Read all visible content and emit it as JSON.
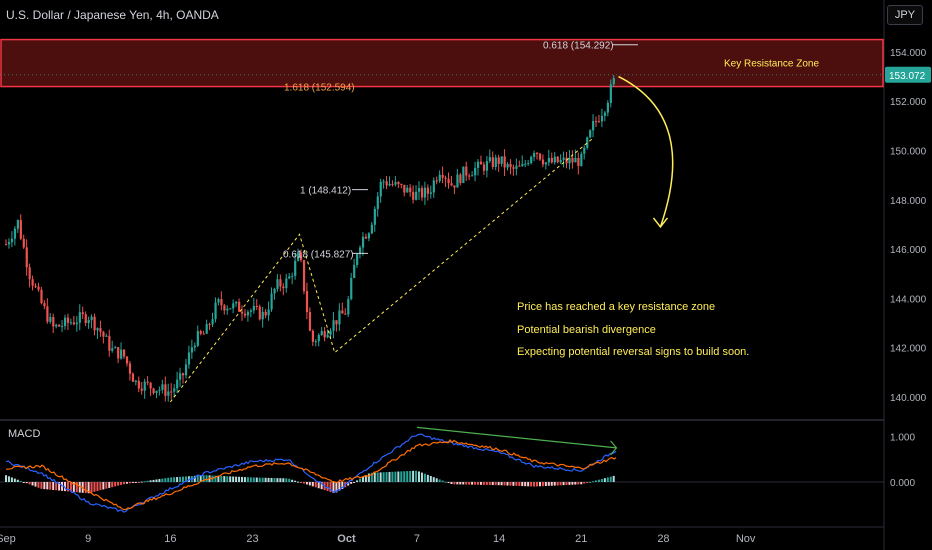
{
  "header": {
    "title": "U.S. Dollar / Japanese Yen, 4h, OANDA",
    "currency_button": "JPY"
  },
  "indicator": {
    "name": "MACD"
  },
  "notes": [
    "Price has reached a key resistance zone",
    "Potential bearish divergence",
    "Expecting potential reversal signs to build soon."
  ],
  "colors": {
    "background": "#000000",
    "up_candle": "#26a69a",
    "down_candle": "#ef5350",
    "zone_fill": "#5a1111",
    "zone_border": "#f23645",
    "annotation_yellow": "#ffee58",
    "macd_line": "#2962ff",
    "signal_line": "#ff6d00",
    "divergence_line": "#4caf50",
    "fib_label_orange": "#f7a24a"
  },
  "chart_data": {
    "type": "candlestick",
    "y_axis": {
      "ticks": [
        140,
        142,
        144,
        146,
        148,
        150,
        152,
        154
      ],
      "tick_labels": [
        "140.000",
        "142.000",
        "144.000",
        "146.000",
        "148.000",
        "150.000",
        "152.000",
        "154.000"
      ]
    },
    "x_axis": {
      "tick_labels": [
        "Sep",
        "9",
        "16",
        "23",
        "Oct",
        "7",
        "14",
        "21",
        "28",
        "Nov"
      ],
      "tick_dates": [
        "2024-09-02",
        "2024-09-09",
        "2024-09-16",
        "2024-09-23",
        "2024-10-01",
        "2024-10-07",
        "2024-10-14",
        "2024-10-21",
        "2024-10-28",
        "2024-11-04"
      ]
    },
    "last_price": "153.072",
    "price_path": [
      [
        "2024-09-02",
        146.2
      ],
      [
        "2024-09-03",
        147.1
      ],
      [
        "2024-09-04",
        145.0
      ],
      [
        "2024-09-05",
        143.8
      ],
      [
        "2024-09-06",
        142.8
      ],
      [
        "2024-09-09",
        143.3
      ],
      [
        "2024-09-10",
        142.7
      ],
      [
        "2024-09-11",
        141.9
      ],
      [
        "2024-09-12",
        141.7
      ],
      [
        "2024-09-13",
        140.6
      ],
      [
        "2024-09-16",
        140.2
      ],
      [
        "2024-09-17",
        140.8
      ],
      [
        "2024-09-18",
        142.3
      ],
      [
        "2024-09-19",
        142.6
      ],
      [
        "2024-09-20",
        143.8
      ],
      [
        "2024-09-23",
        143.5
      ],
      [
        "2024-09-24",
        143.3
      ],
      [
        "2024-09-25",
        144.5
      ],
      [
        "2024-09-26",
        144.7
      ],
      [
        "2024-09-27",
        145.8
      ],
      [
        "2024-09-28",
        142.2
      ],
      [
        "2024-10-01",
        143.5
      ],
      [
        "2024-10-02",
        146.2
      ],
      [
        "2024-10-03",
        146.9
      ],
      [
        "2024-10-04",
        148.8
      ],
      [
        "2024-10-07",
        148.2
      ],
      [
        "2024-10-08",
        148.3
      ],
      [
        "2024-10-09",
        149.3
      ],
      [
        "2024-10-10",
        148.6
      ],
      [
        "2024-10-11",
        149.1
      ],
      [
        "2024-10-14",
        149.6
      ],
      [
        "2024-10-15",
        149.2
      ],
      [
        "2024-10-16",
        149.3
      ],
      [
        "2024-10-17",
        150.1
      ],
      [
        "2024-10-18",
        149.5
      ],
      [
        "2024-10-21",
        149.6
      ],
      [
        "2024-10-22",
        151.0
      ],
      [
        "2024-10-23",
        151.8
      ],
      [
        "2024-10-24",
        153.1
      ]
    ],
    "resistance_zone": {
      "low": 152.594,
      "high": 154.5,
      "label": "Key Resistance Zone"
    },
    "fib_levels": [
      {
        "label": "0.618 (154.292)",
        "value": 154.292,
        "color": "#d1d4dc"
      },
      {
        "label": "1.618 (152.594)",
        "value": 152.594,
        "color": "#f7a24a"
      },
      {
        "label": "1 (148.412)",
        "value": 148.412,
        "color": "#d1d4dc"
      },
      {
        "label": "0.618 (145.827)",
        "value": 145.827,
        "color": "#d1d4dc"
      }
    ],
    "dashed_wave": [
      [
        "2024-09-16",
        139.8
      ],
      [
        "2024-09-27",
        146.6
      ],
      [
        "2024-09-30",
        141.8
      ],
      [
        "2024-10-22",
        150.5
      ]
    ],
    "reversal_arrow": {
      "from": [
        "2024-10-24",
        153.0
      ],
      "to": [
        "2024-10-28",
        146.9
      ]
    },
    "macd": {
      "y_ticks": [
        0,
        1
      ],
      "tick_labels": [
        "0.000",
        "1.000"
      ],
      "macd_path": [
        [
          "2024-09-02",
          0.45
        ],
        [
          "2024-09-05",
          0.2
        ],
        [
          "2024-09-09",
          -0.45
        ],
        [
          "2024-09-12",
          -0.65
        ],
        [
          "2024-09-16",
          -0.15
        ],
        [
          "2024-09-19",
          0.2
        ],
        [
          "2024-09-23",
          0.45
        ],
        [
          "2024-09-26",
          0.5
        ],
        [
          "2024-09-30",
          -0.25
        ],
        [
          "2024-10-03",
          0.35
        ],
        [
          "2024-10-07",
          1.05
        ],
        [
          "2024-10-10",
          0.85
        ],
        [
          "2024-10-14",
          0.65
        ],
        [
          "2024-10-17",
          0.35
        ],
        [
          "2024-10-21",
          0.25
        ],
        [
          "2024-10-24",
          0.7
        ]
      ],
      "signal_path": [
        [
          "2024-09-02",
          0.3
        ],
        [
          "2024-09-05",
          0.35
        ],
        [
          "2024-09-09",
          -0.2
        ],
        [
          "2024-09-12",
          -0.6
        ],
        [
          "2024-09-16",
          -0.25
        ],
        [
          "2024-09-19",
          0.05
        ],
        [
          "2024-09-23",
          0.35
        ],
        [
          "2024-09-26",
          0.42
        ],
        [
          "2024-09-30",
          0.0
        ],
        [
          "2024-10-03",
          0.15
        ],
        [
          "2024-10-07",
          0.8
        ],
        [
          "2024-10-10",
          0.9
        ],
        [
          "2024-10-14",
          0.72
        ],
        [
          "2024-10-17",
          0.45
        ],
        [
          "2024-10-21",
          0.3
        ],
        [
          "2024-10-24",
          0.55
        ]
      ],
      "divergence_line": {
        "from": [
          "2024-10-07",
          1.2
        ],
        "to": [
          "2024-10-24",
          0.75
        ]
      }
    }
  }
}
